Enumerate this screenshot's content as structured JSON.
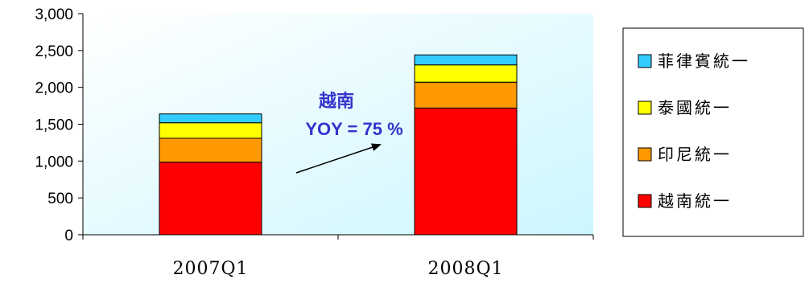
{
  "chart_data": {
    "type": "bar",
    "stacked": true,
    "categories": [
      "2007Q1",
      "2008Q1"
    ],
    "series": [
      {
        "name": "越南統一",
        "color": "#ff0000",
        "values": [
          985,
          1720
        ]
      },
      {
        "name": "印尼統一",
        "color": "#ff9900",
        "values": [
          325,
          350
        ]
      },
      {
        "name": "泰國統一",
        "color": "#ffff00",
        "values": [
          210,
          235
        ]
      },
      {
        "name": "菲律賓統一",
        "color": "#33ccff",
        "values": [
          120,
          135
        ]
      }
    ],
    "ylim": [
      0,
      3000
    ],
    "yticks": [
      0,
      500,
      1000,
      1500,
      2000,
      2500,
      3000
    ],
    "ytick_labels": [
      "0",
      "500",
      "1,000",
      "1,500",
      "2,000",
      "2,500",
      "3,000"
    ],
    "legend_order": [
      "菲律賓統一",
      "泰國統一",
      "印尼統一",
      "越南統一"
    ],
    "legend_position": "right",
    "plot_background": "#e6ffff",
    "grid": false,
    "annotation": {
      "title": "越南",
      "text": "YOY = 75 %"
    }
  }
}
